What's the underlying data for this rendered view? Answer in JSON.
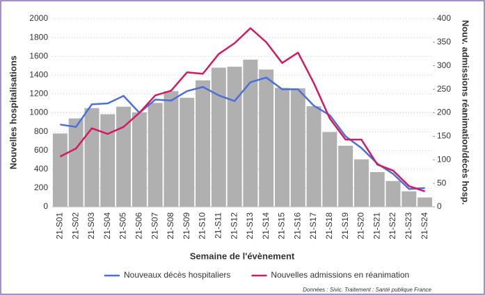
{
  "chart_data": {
    "type": "bar",
    "categories": [
      "21-S01",
      "21-S02",
      "21-S03",
      "21-S04",
      "21-S05",
      "21-S06",
      "21-S07",
      "21-S08",
      "21-S09",
      "21-S10",
      "21-S11",
      "21-S12",
      "21-S13",
      "21-S14",
      "21-S15",
      "21-S16",
      "21-S17",
      "21-S18",
      "21-S19",
      "21-S20",
      "21-S21",
      "21-S22",
      "21-S23",
      "21-S24"
    ],
    "series": [
      {
        "type": "bar",
        "color": "#b0b0b0",
        "values": [
          780,
          940,
          1050,
          985,
          1065,
          1005,
          1105,
          1230,
          1160,
          1345,
          1480,
          1490,
          1565,
          1460,
          1265,
          1260,
          1070,
          795,
          650,
          505,
          370,
          275,
          165,
          100
        ]
      },
      {
        "type": "line",
        "name": "Nouveaux décès hospitaliers",
        "color": "#4a6fdc",
        "axis": "y2",
        "values": [
          175,
          170,
          218,
          220,
          236,
          200,
          228,
          226,
          246,
          255,
          237,
          225,
          265,
          275,
          250,
          250,
          215,
          195,
          150,
          125,
          92,
          70,
          38,
          40
        ]
      },
      {
        "type": "line",
        "name": "Nouvelles admissions en réanimation",
        "color": "#d6195f",
        "axis": "y2",
        "values": [
          107,
          124,
          167,
          155,
          170,
          200,
          237,
          247,
          286,
          283,
          325,
          348,
          380,
          350,
          306,
          328,
          263,
          188,
          143,
          143,
          90,
          77,
          44,
          33
        ]
      }
    ],
    "ylabel": "Nouvelles hospitalisations",
    "y2label": "Nouv. admissions réanimation/décès hosp.",
    "xlabel": "Semaine de l'évènement",
    "ylim": [
      0,
      2000
    ],
    "yticks": [
      0,
      200,
      400,
      600,
      800,
      1000,
      1200,
      1400,
      1600,
      1800,
      2000
    ],
    "y2lim": [
      0,
      400
    ],
    "y2ticks": [
      0,
      50,
      100,
      150,
      200,
      250,
      300,
      350,
      400
    ],
    "grid": true,
    "source": "Données : Sivic. Traitement : Santé publique France"
  }
}
